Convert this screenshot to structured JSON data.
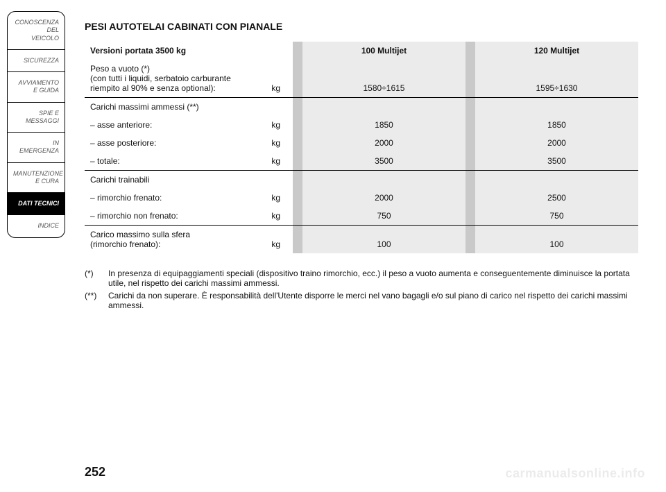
{
  "colors": {
    "gap_bg": "#c9c9c9",
    "val_bg": "#ebebeb",
    "text": "#111111",
    "sidebar_inactive_text": "#555555",
    "sidebar_border": "#000000",
    "sidebar_active_bg": "#000000",
    "sidebar_active_text": "#ffffff"
  },
  "sidebar": {
    "items": [
      {
        "lines": [
          "CONOSCENZA",
          "DEL",
          "VEICOLO"
        ],
        "active": false
      },
      {
        "lines": [
          "SICUREZZA"
        ],
        "active": false
      },
      {
        "lines": [
          "AVVIAMENTO",
          "E GUIDA"
        ],
        "active": false
      },
      {
        "lines": [
          "SPIE E",
          "MESSAGGI"
        ],
        "active": false
      },
      {
        "lines": [
          "IN EMERGENZA"
        ],
        "active": false
      },
      {
        "lines": [
          "MANUTENZIONE",
          "E CURA"
        ],
        "active": false
      },
      {
        "lines": [
          "DATI TECNICI"
        ],
        "active": true
      },
      {
        "lines": [
          "INDICE"
        ],
        "active": false
      }
    ]
  },
  "title": "PESI AUTOTELAI CABINATI CON PIANALE",
  "table": {
    "row_header": "Versioni portata 3500 kg",
    "unit_label": "kg",
    "columns": [
      {
        "label": "100 Multijet"
      },
      {
        "label": "120 Multijet"
      }
    ],
    "groups": [
      {
        "rows": [
          {
            "label_lines": [
              "Peso a vuoto (*)",
              "(con tutti i liquidi, serbatoio carburante",
              "riempito al 90% e senza optional):"
            ],
            "unit": "kg",
            "values": [
              "1580÷1615",
              "1595÷1630"
            ]
          }
        ]
      },
      {
        "rows": [
          {
            "label_lines": [
              "Carichi massimi ammessi (**)"
            ],
            "unit": "",
            "values": [
              "",
              ""
            ]
          },
          {
            "label_lines": [
              "– asse anteriore:"
            ],
            "unit": "kg",
            "values": [
              "1850",
              "1850"
            ]
          },
          {
            "label_lines": [
              "– asse posteriore:"
            ],
            "unit": "kg",
            "values": [
              "2000",
              "2000"
            ]
          },
          {
            "label_lines": [
              "– totale:"
            ],
            "unit": "kg",
            "values": [
              "3500",
              "3500"
            ]
          }
        ]
      },
      {
        "rows": [
          {
            "label_lines": [
              "Carichi trainabili"
            ],
            "unit": "",
            "values": [
              "",
              ""
            ]
          },
          {
            "label_lines": [
              "– rimorchio frenato:"
            ],
            "unit": "kg",
            "values": [
              "2000",
              "2500"
            ]
          },
          {
            "label_lines": [
              "– rimorchio non frenato:"
            ],
            "unit": "kg",
            "values": [
              "750",
              "750"
            ]
          }
        ]
      },
      {
        "rows": [
          {
            "label_lines": [
              "Carico massimo sulla sfera",
              "(rimorchio frenato):"
            ],
            "unit": "kg",
            "values": [
              "100",
              "100"
            ]
          }
        ]
      }
    ]
  },
  "notes": [
    {
      "mark": "(*)",
      "text": "In presenza di equipaggiamenti speciali (dispositivo traino rimorchio, ecc.) il peso a vuoto aumenta e conseguentemente diminuisce la portata utile, nel rispetto dei carichi massimi ammessi."
    },
    {
      "mark": "(**)",
      "text": "Carichi da non superare. È responsabilità dell'Utente disporre le merci nel vano bagagli e/o sul piano di carico nel rispetto dei carichi massimi ammessi."
    }
  ],
  "page_number": "252",
  "watermark": "carmanualsonline.info"
}
